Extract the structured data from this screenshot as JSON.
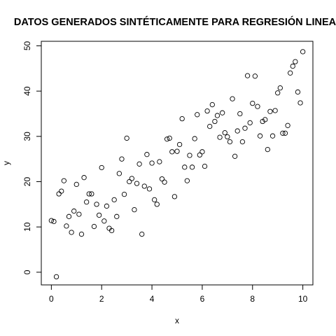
{
  "chart_data": {
    "type": "scatter",
    "title": "DATOS GENERADOS SINTÉTICAMENTE PARA REGRESIÓN LINEA",
    "xlabel": "x",
    "ylabel": "y",
    "xlim": [
      -0.4,
      10.4
    ],
    "ylim": [
      -2.8,
      51.0
    ],
    "x_ticks": [
      0,
      2,
      4,
      6,
      8,
      10
    ],
    "y_ticks": [
      0,
      10,
      20,
      30,
      40,
      50
    ],
    "grid": false,
    "legend": "none",
    "marker": "open-circle",
    "marker_color": "#000000",
    "points": [
      [
        0.0,
        11.4
      ],
      [
        0.1,
        11.2
      ],
      [
        0.2,
        -1.0
      ],
      [
        0.3,
        17.3
      ],
      [
        0.4,
        17.9
      ],
      [
        0.5,
        20.2
      ],
      [
        0.6,
        10.2
      ],
      [
        0.7,
        12.3
      ],
      [
        0.8,
        8.8
      ],
      [
        0.9,
        13.5
      ],
      [
        1.0,
        19.4
      ],
      [
        1.1,
        12.8
      ],
      [
        1.2,
        8.4
      ],
      [
        1.3,
        20.9
      ],
      [
        1.4,
        15.5
      ],
      [
        1.5,
        17.3
      ],
      [
        1.6,
        17.3
      ],
      [
        1.7,
        10.1
      ],
      [
        1.8,
        15.0
      ],
      [
        1.9,
        12.6
      ],
      [
        2.0,
        23.1
      ],
      [
        2.1,
        11.3
      ],
      [
        2.2,
        14.6
      ],
      [
        2.3,
        9.7
      ],
      [
        2.4,
        9.2
      ],
      [
        2.5,
        16.0
      ],
      [
        2.6,
        12.3
      ],
      [
        2.7,
        21.8
      ],
      [
        2.8,
        25.0
      ],
      [
        2.9,
        17.2
      ],
      [
        3.0,
        29.6
      ],
      [
        3.1,
        20.0
      ],
      [
        3.2,
        20.7
      ],
      [
        3.3,
        13.8
      ],
      [
        3.4,
        19.6
      ],
      [
        3.5,
        23.9
      ],
      [
        3.6,
        8.4
      ],
      [
        3.7,
        19.0
      ],
      [
        3.8,
        26.0
      ],
      [
        3.9,
        18.4
      ],
      [
        4.0,
        24.1
      ],
      [
        4.1,
        16.0
      ],
      [
        4.2,
        15.0
      ],
      [
        4.3,
        24.4
      ],
      [
        4.4,
        20.6
      ],
      [
        4.5,
        19.9
      ],
      [
        4.6,
        29.4
      ],
      [
        4.7,
        29.6
      ],
      [
        4.8,
        26.6
      ],
      [
        4.9,
        16.7
      ],
      [
        5.0,
        26.7
      ],
      [
        5.1,
        28.2
      ],
      [
        5.2,
        33.9
      ],
      [
        5.3,
        23.2
      ],
      [
        5.4,
        20.2
      ],
      [
        5.5,
        25.8
      ],
      [
        5.6,
        23.2
      ],
      [
        5.7,
        29.5
      ],
      [
        5.8,
        34.8
      ],
      [
        5.9,
        25.9
      ],
      [
        6.0,
        26.6
      ],
      [
        6.1,
        23.4
      ],
      [
        6.2,
        35.6
      ],
      [
        6.3,
        32.2
      ],
      [
        6.4,
        37.0
      ],
      [
        6.5,
        33.3
      ],
      [
        6.6,
        34.6
      ],
      [
        6.7,
        29.8
      ],
      [
        6.8,
        35.2
      ],
      [
        6.9,
        30.8
      ],
      [
        7.0,
        29.9
      ],
      [
        7.1,
        28.8
      ],
      [
        7.2,
        38.3
      ],
      [
        7.3,
        25.6
      ],
      [
        7.4,
        31.2
      ],
      [
        7.5,
        35.0
      ],
      [
        7.6,
        28.8
      ],
      [
        7.7,
        31.8
      ],
      [
        7.8,
        43.4
      ],
      [
        7.9,
        33.0
      ],
      [
        8.0,
        37.3
      ],
      [
        8.1,
        43.3
      ],
      [
        8.2,
        36.6
      ],
      [
        8.3,
        30.1
      ],
      [
        8.4,
        33.3
      ],
      [
        8.5,
        33.7
      ],
      [
        8.6,
        27.1
      ],
      [
        8.7,
        35.5
      ],
      [
        8.8,
        30.1
      ],
      [
        8.9,
        35.7
      ],
      [
        9.0,
        39.6
      ],
      [
        9.1,
        40.7
      ],
      [
        9.2,
        30.7
      ],
      [
        9.3,
        30.7
      ],
      [
        9.4,
        32.4
      ],
      [
        9.5,
        44.0
      ],
      [
        9.6,
        45.5
      ],
      [
        9.7,
        46.5
      ],
      [
        9.8,
        39.8
      ],
      [
        9.9,
        37.4
      ],
      [
        10.0,
        48.7
      ]
    ]
  }
}
